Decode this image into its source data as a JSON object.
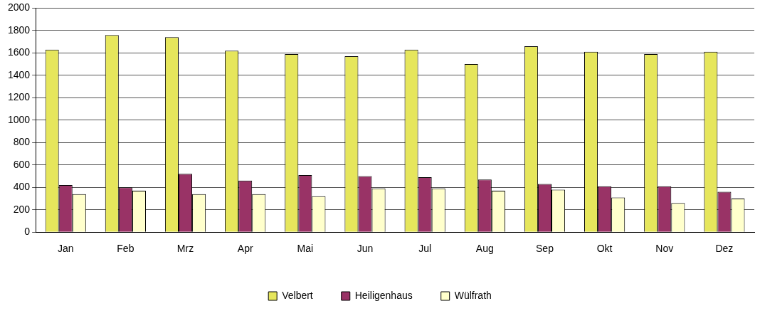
{
  "chart_data": {
    "type": "bar",
    "categories": [
      "Jan",
      "Feb",
      "Mrz",
      "Apr",
      "Mai",
      "Jun",
      "Jul",
      "Aug",
      "Sep",
      "Okt",
      "Nov",
      "Dez"
    ],
    "series": [
      {
        "name": "Velbert",
        "color": "#e6e65c",
        "values": [
          1630,
          1760,
          1740,
          1620,
          1590,
          1570,
          1630,
          1500,
          1660,
          1610,
          1590,
          1610
        ]
      },
      {
        "name": "Heiligenhaus",
        "color": "#993366",
        "values": [
          420,
          400,
          520,
          460,
          510,
          500,
          490,
          470,
          430,
          410,
          410,
          360
        ]
      },
      {
        "name": "Wülfrath",
        "color": "#ffffcc",
        "values": [
          340,
          370,
          340,
          340,
          320,
          390,
          390,
          370,
          380,
          310,
          260,
          300
        ]
      }
    ],
    "ylim": [
      0,
      2000
    ],
    "yticks": [
      0,
      200,
      400,
      600,
      800,
      1000,
      1200,
      1400,
      1600,
      1800,
      2000
    ],
    "grid": "y",
    "legend": "bottom"
  }
}
